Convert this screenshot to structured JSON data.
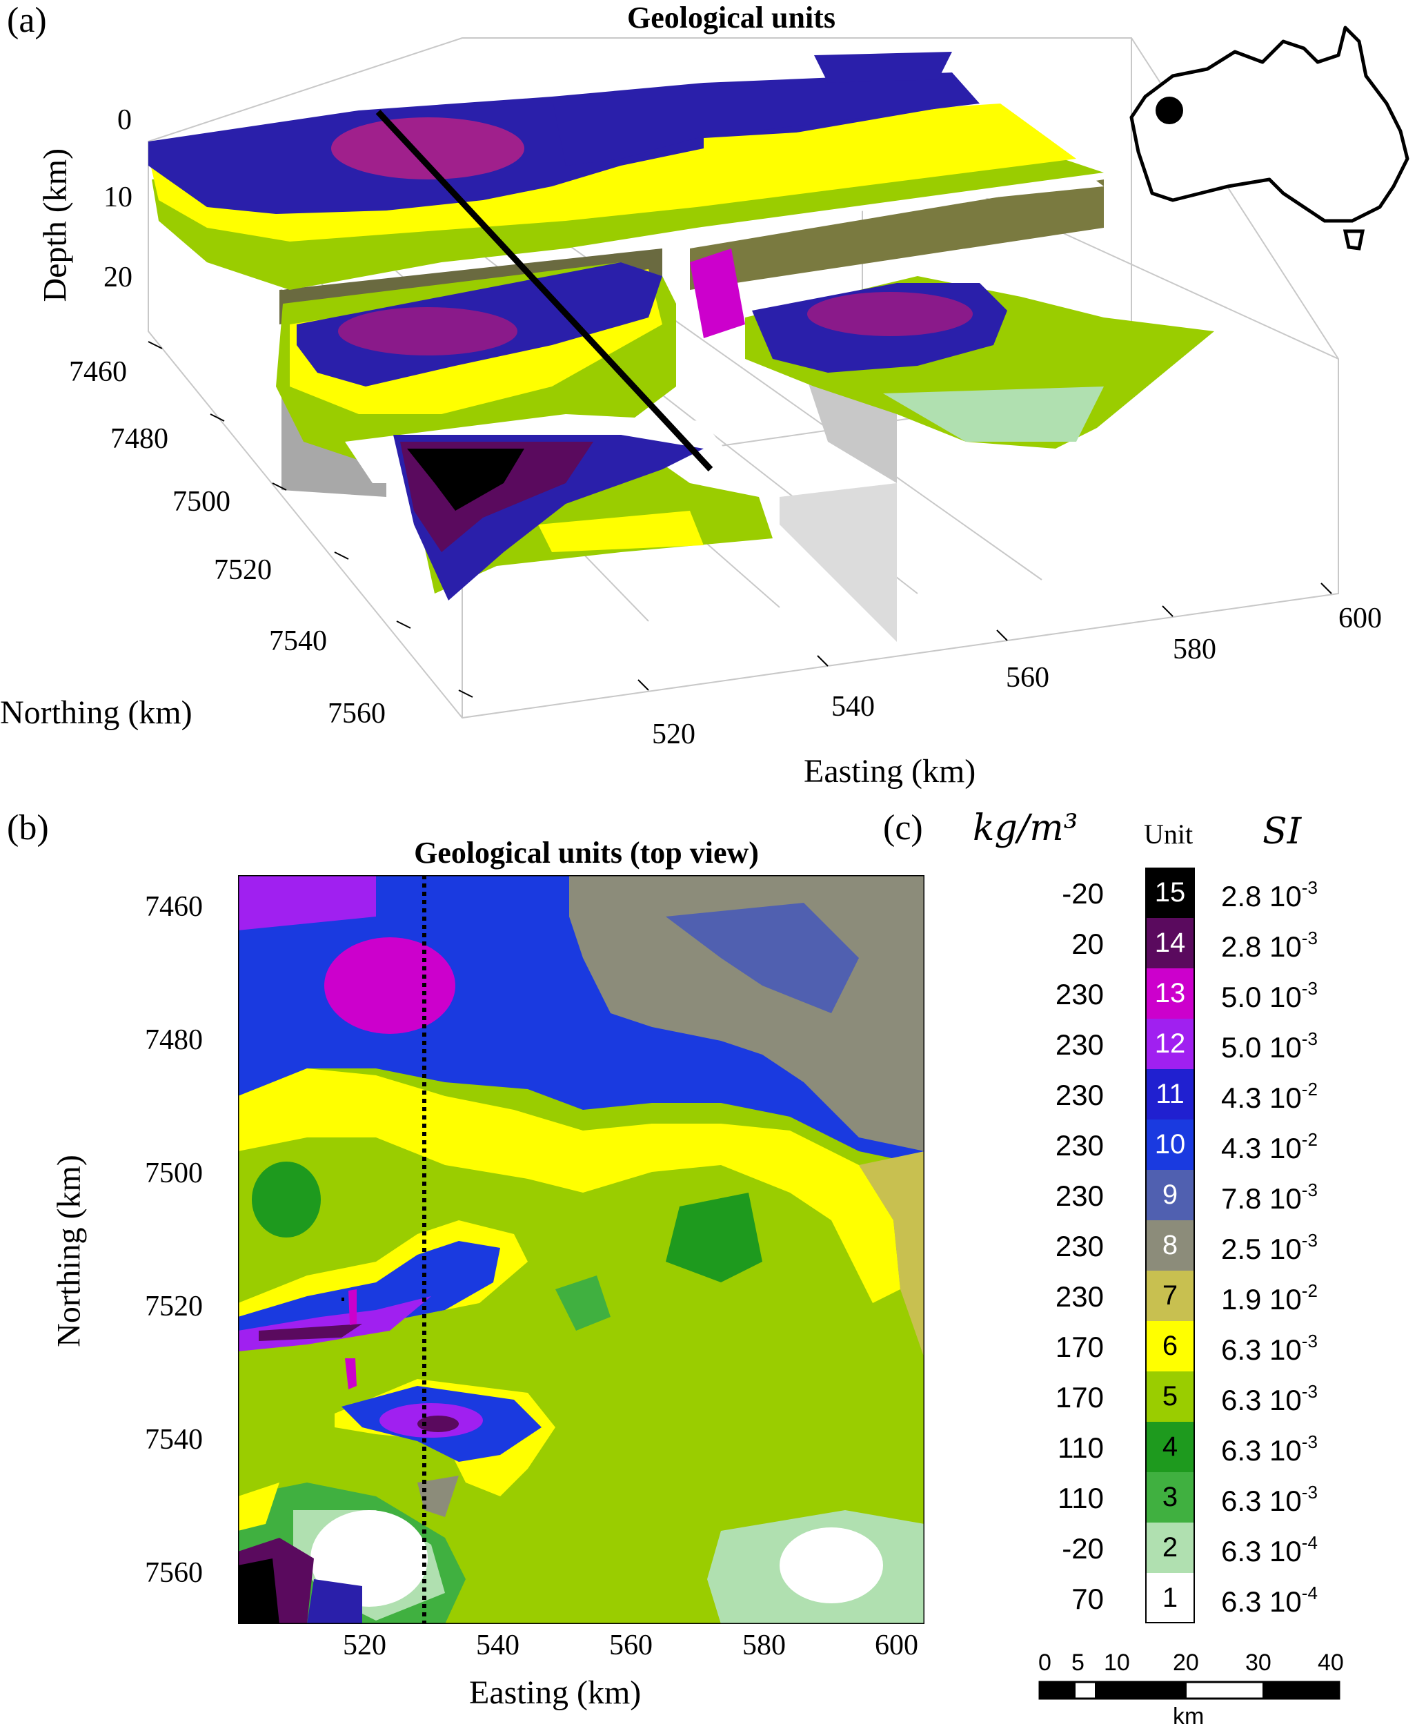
{
  "panel_a": {
    "label": "(a)",
    "title": "Geological units",
    "depth_label": "Depth (km)",
    "depth_ticks": [
      "0",
      "10",
      "20"
    ],
    "northing_label": "Northing (km)",
    "northing_ticks": [
      "7460",
      "7480",
      "7500",
      "7520",
      "7540",
      "7560"
    ],
    "easting_label": "Easting (km)",
    "easting_ticks": [
      "520",
      "540",
      "560",
      "580",
      "600"
    ]
  },
  "panel_b": {
    "label": "(b)",
    "title": "Geological units (top view)",
    "northing_label": "Northing (km)",
    "northing_ticks": [
      "7460",
      "7480",
      "7500",
      "7520",
      "7540",
      "7560"
    ],
    "easting_label": "Easting (km)",
    "easting_ticks": [
      "520",
      "540",
      "560",
      "580",
      "600"
    ]
  },
  "panel_c": {
    "label": "(c)",
    "density_header": "kg/m³",
    "unit_header": "Unit",
    "si_header": "SI",
    "units": [
      {
        "unit": "15",
        "density": "-20",
        "si_mant": "2.8 10",
        "si_exp": "-3",
        "color": "#000000",
        "text_color": "#ffffff"
      },
      {
        "unit": "14",
        "density": "20",
        "si_mant": "2.8 10",
        "si_exp": "-3",
        "color": "#5a0a5e",
        "text_color": "#ffffff"
      },
      {
        "unit": "13",
        "density": "230",
        "si_mant": "5.0 10",
        "si_exp": "-3",
        "color": "#cc00cc",
        "text_color": "#ffffff"
      },
      {
        "unit": "12",
        "density": "230",
        "si_mant": "5.0 10",
        "si_exp": "-3",
        "color": "#a020f0",
        "text_color": "#ffffff"
      },
      {
        "unit": "11",
        "density": "230",
        "si_mant": "4.3 10",
        "si_exp": "-2",
        "color": "#2020d0",
        "text_color": "#ffffff"
      },
      {
        "unit": "10",
        "density": "230",
        "si_mant": "4.3 10",
        "si_exp": "-2",
        "color": "#1a3ae0",
        "text_color": "#ffffff"
      },
      {
        "unit": "9",
        "density": "230",
        "si_mant": "7.8 10",
        "si_exp": "-3",
        "color": "#5060b0",
        "text_color": "#ffffff"
      },
      {
        "unit": "8",
        "density": "230",
        "si_mant": "2.5 10",
        "si_exp": "-3",
        "color": "#8c8c7a",
        "text_color": "#ffffff"
      },
      {
        "unit": "7",
        "density": "230",
        "si_mant": "1.9 10",
        "si_exp": "-2",
        "color": "#c8c050",
        "text_color": "#000000"
      },
      {
        "unit": "6",
        "density": "170",
        "si_mant": "6.3 10",
        "si_exp": "-3",
        "color": "#ffff00",
        "text_color": "#000000"
      },
      {
        "unit": "5",
        "density": "170",
        "si_mant": "6.3 10",
        "si_exp": "-3",
        "color": "#9acd00",
        "text_color": "#000000"
      },
      {
        "unit": "4",
        "density": "110",
        "si_mant": "6.3 10",
        "si_exp": "-3",
        "color": "#1e9a1e",
        "text_color": "#000000"
      },
      {
        "unit": "3",
        "density": "110",
        "si_mant": "6.3 10",
        "si_exp": "-3",
        "color": "#40b040",
        "text_color": "#000000"
      },
      {
        "unit": "2",
        "density": "-20",
        "si_mant": "6.3 10",
        "si_exp": "-4",
        "color": "#b0e0b0",
        "text_color": "#000000"
      },
      {
        "unit": "1",
        "density": "70",
        "si_mant": "6.3 10",
        "si_exp": "-4",
        "color": "#ffffff",
        "text_color": "#000000"
      }
    ]
  },
  "scale_bar": {
    "ticks": [
      "0",
      "5",
      "10",
      "20",
      "30",
      "40"
    ],
    "unit": "km"
  }
}
